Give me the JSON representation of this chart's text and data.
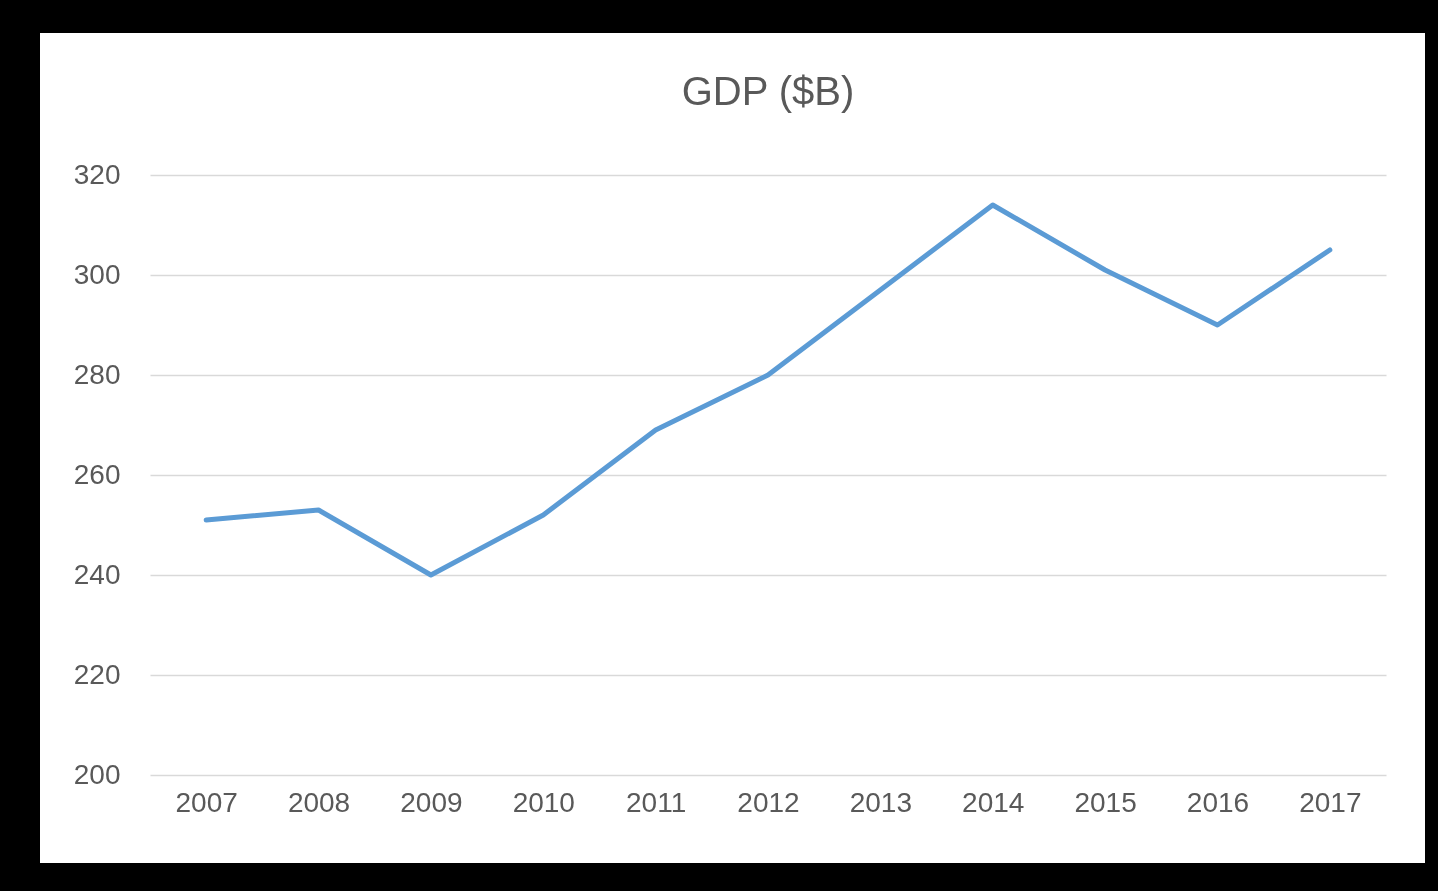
{
  "chart_data": {
    "type": "line",
    "title": "GDP ($B)",
    "categories": [
      "2007",
      "2008",
      "2009",
      "2010",
      "2011",
      "2012",
      "2013",
      "2014",
      "2015",
      "2016",
      "2017"
    ],
    "series": [
      {
        "color": "#5b9bd5",
        "values": [
          251,
          253,
          240,
          252,
          269,
          280,
          297,
          314,
          301,
          290,
          305
        ]
      }
    ],
    "ylim": [
      200,
      320
    ],
    "yticks": [
      200,
      220,
      240,
      260,
      280,
      300,
      320
    ],
    "grid": "y",
    "legend": false,
    "marker": "none",
    "line_style": "solid"
  }
}
